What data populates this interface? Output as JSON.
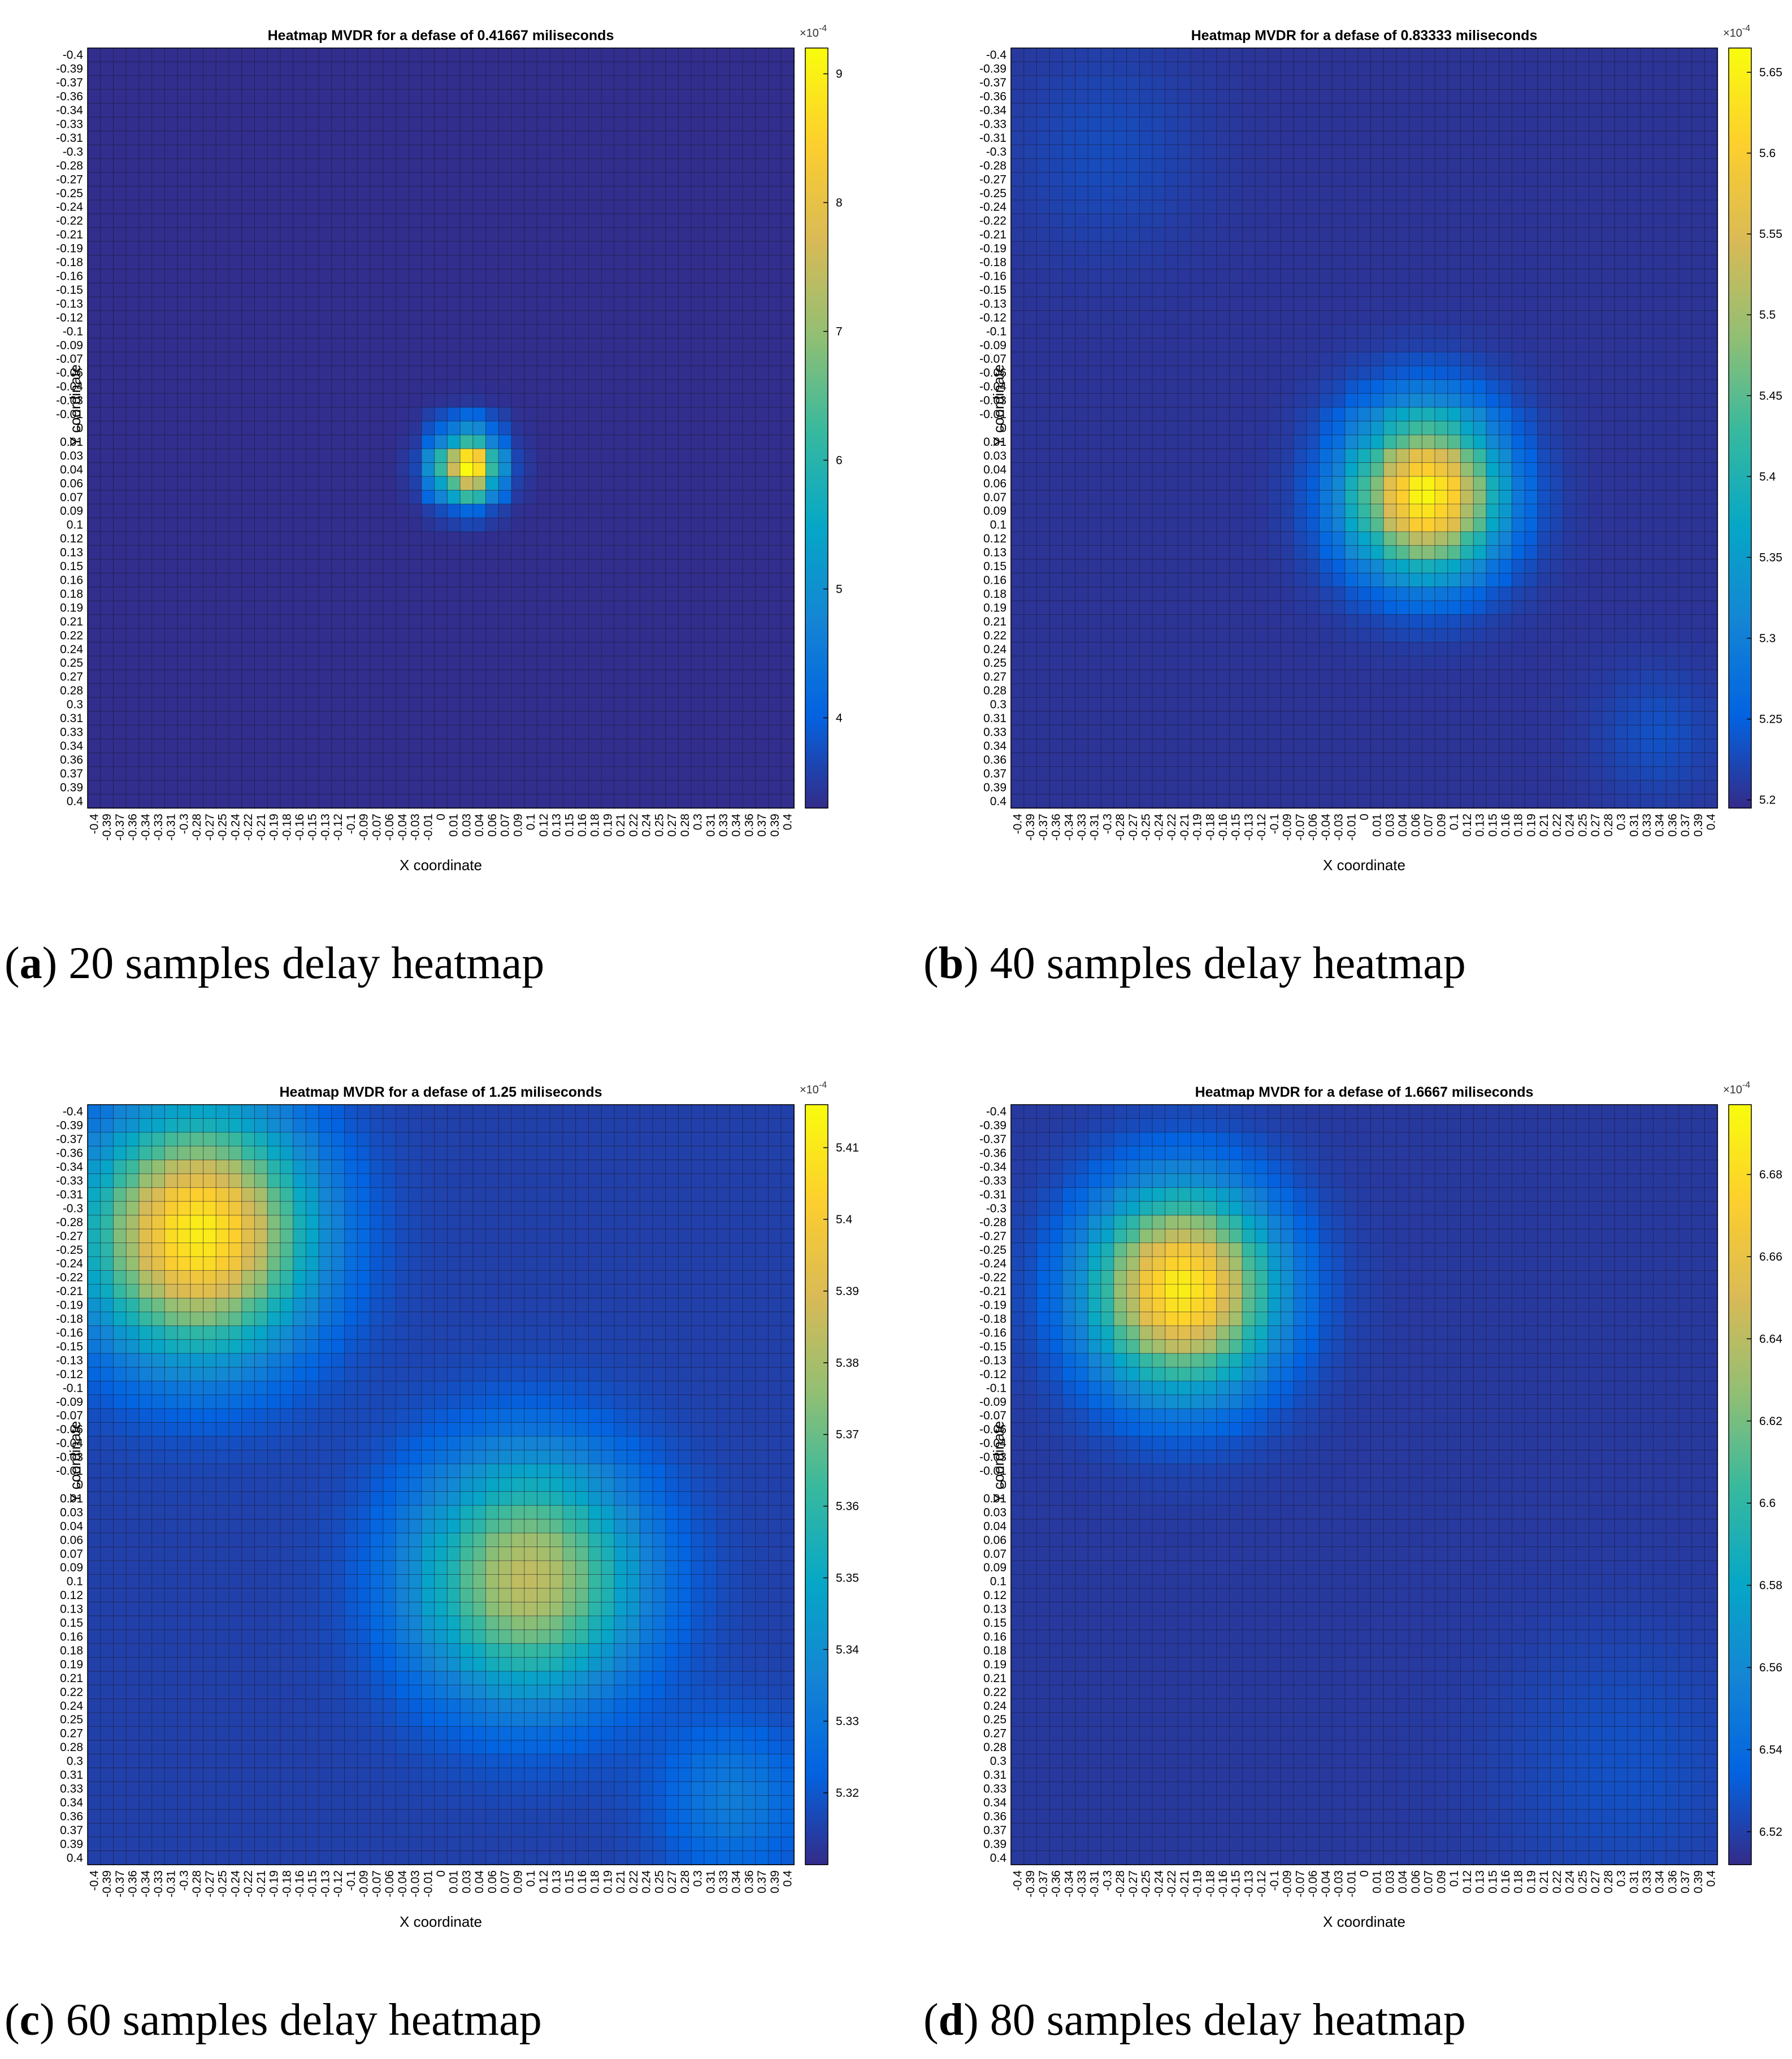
{
  "colors": {
    "parula": [
      "#352a87",
      "#0363e1",
      "#1485d4",
      "#06a7c6",
      "#38b99e",
      "#92bf73",
      "#d9ba56",
      "#fcce2e",
      "#f9fb0e"
    ],
    "grid_line": "#1a1a2e",
    "axes_text": "#000000"
  },
  "tick_labels": [
    "-0.4",
    "-0.39",
    "-0.37",
    "-0.36",
    "-0.34",
    "-0.33",
    "-0.31",
    "-0.3",
    "-0.28",
    "-0.27",
    "-0.25",
    "-0.24",
    "-0.22",
    "-0.21",
    "-0.19",
    "-0.18",
    "-0.16",
    "-0.15",
    "-0.13",
    "-0.12",
    "-0.1",
    "-0.09",
    "-0.07",
    "-0.06",
    "-0.04",
    "-0.03",
    "-0.01",
    "0",
    "0.01",
    "0.03",
    "0.04",
    "0.06",
    "0.07",
    "0.09",
    "0.1",
    "0.12",
    "0.13",
    "0.15",
    "0.16",
    "0.18",
    "0.19",
    "0.21",
    "0.22",
    "0.24",
    "0.25",
    "0.27",
    "0.28",
    "0.3",
    "0.31",
    "0.33",
    "0.34",
    "0.36",
    "0.37",
    "0.39",
    "0.4"
  ],
  "chart_data": [
    {
      "type": "heatmap",
      "title": "Heatmap MVDR for a defase of 0.41667 miliseconds",
      "xlabel": "X coordinate",
      "ylabel": "Y coordinate",
      "x_range": [
        -0.4,
        0.4
      ],
      "y_range": [
        -0.4,
        0.4
      ],
      "y_direction": "top-to-bottom",
      "grid": true,
      "colorbar": {
        "exponent_label": "×10",
        "exponent": "-4",
        "min": 3.3,
        "max": 9.2,
        "ticks": [
          4,
          5,
          6,
          7,
          8,
          9
        ]
      },
      "field": {
        "base": 3.35,
        "peaks": [
          {
            "x": 0.03,
            "y": 0.04,
            "amplitude": 5.85,
            "sigma": 0.025
          }
        ]
      },
      "caption": {
        "letter": "a",
        "text": " 20 samples delay heatmap"
      }
    },
    {
      "type": "heatmap",
      "title": "Heatmap MVDR for a defase of 0.83333 miliseconds",
      "xlabel": "X coordinate",
      "ylabel": "Y coordinate",
      "x_range": [
        -0.4,
        0.4
      ],
      "y_range": [
        -0.4,
        0.4
      ],
      "y_direction": "top-to-bottom",
      "grid": true,
      "colorbar": {
        "exponent_label": "×10",
        "exponent": "-4",
        "min": 5.195,
        "max": 5.665,
        "ticks": [
          5.2,
          5.25,
          5.3,
          5.35,
          5.4,
          5.45,
          5.5,
          5.55,
          5.6,
          5.65
        ]
      },
      "field": {
        "base": 5.205,
        "peaks": [
          {
            "x": 0.07,
            "y": 0.07,
            "amplitude": 0.455,
            "sigma": 0.06
          },
          {
            "x": 0.34,
            "y": 0.33,
            "amplitude": 0.03,
            "sigma": 0.05
          },
          {
            "x": -0.3,
            "y": -0.3,
            "amplitude": 0.025,
            "sigma": 0.08
          }
        ]
      },
      "caption": {
        "letter": "b",
        "text": " 40 samples delay heatmap"
      }
    },
    {
      "type": "heatmap",
      "title": "Heatmap MVDR for a defase of 1.25 miliseconds",
      "xlabel": "X coordinate",
      "ylabel": "Y coordinate",
      "x_range": [
        -0.4,
        0.4
      ],
      "y_range": [
        -0.4,
        0.4
      ],
      "y_direction": "top-to-bottom",
      "grid": true,
      "colorbar": {
        "exponent_label": "×10",
        "exponent": "-4",
        "min": 5.31,
        "max": 5.416,
        "ticks": [
          5.32,
          5.33,
          5.34,
          5.35,
          5.36,
          5.37,
          5.38,
          5.39,
          5.4,
          5.41
        ]
      },
      "field": {
        "base": 5.315,
        "peaks": [
          {
            "x": -0.28,
            "y": -0.27,
            "amplitude": 0.097,
            "sigma": 0.09
          },
          {
            "x": 0.1,
            "y": 0.1,
            "amplitude": 0.07,
            "sigma": 0.09
          },
          {
            "x": 0.34,
            "y": 0.34,
            "amplitude": 0.018,
            "sigma": 0.06
          }
        ]
      },
      "caption": {
        "letter": "c",
        "text": " 60 samples delay heatmap"
      }
    },
    {
      "type": "heatmap",
      "title": "Heatmap MVDR for a defase of 1.6667 miliseconds",
      "xlabel": "X coordinate",
      "ylabel": "Y coordinate",
      "x_range": [
        -0.4,
        0.4
      ],
      "y_range": [
        -0.4,
        0.4
      ],
      "y_direction": "top-to-bottom",
      "grid": true,
      "colorbar": {
        "exponent_label": "×10",
        "exponent": "-4",
        "min": 6.512,
        "max": 6.697,
        "ticks": [
          6.52,
          6.54,
          6.56,
          6.58,
          6.6,
          6.62,
          6.64,
          6.66,
          6.68
        ]
      },
      "field": {
        "base": 6.518,
        "peaks": [
          {
            "x": -0.21,
            "y": -0.21,
            "amplitude": 0.172,
            "sigma": 0.075
          },
          {
            "x": 0.3,
            "y": 0.3,
            "amplitude": 0.01,
            "sigma": 0.1
          }
        ]
      },
      "caption": {
        "letter": "d",
        "text": " 80 samples delay heatmap"
      }
    }
  ]
}
